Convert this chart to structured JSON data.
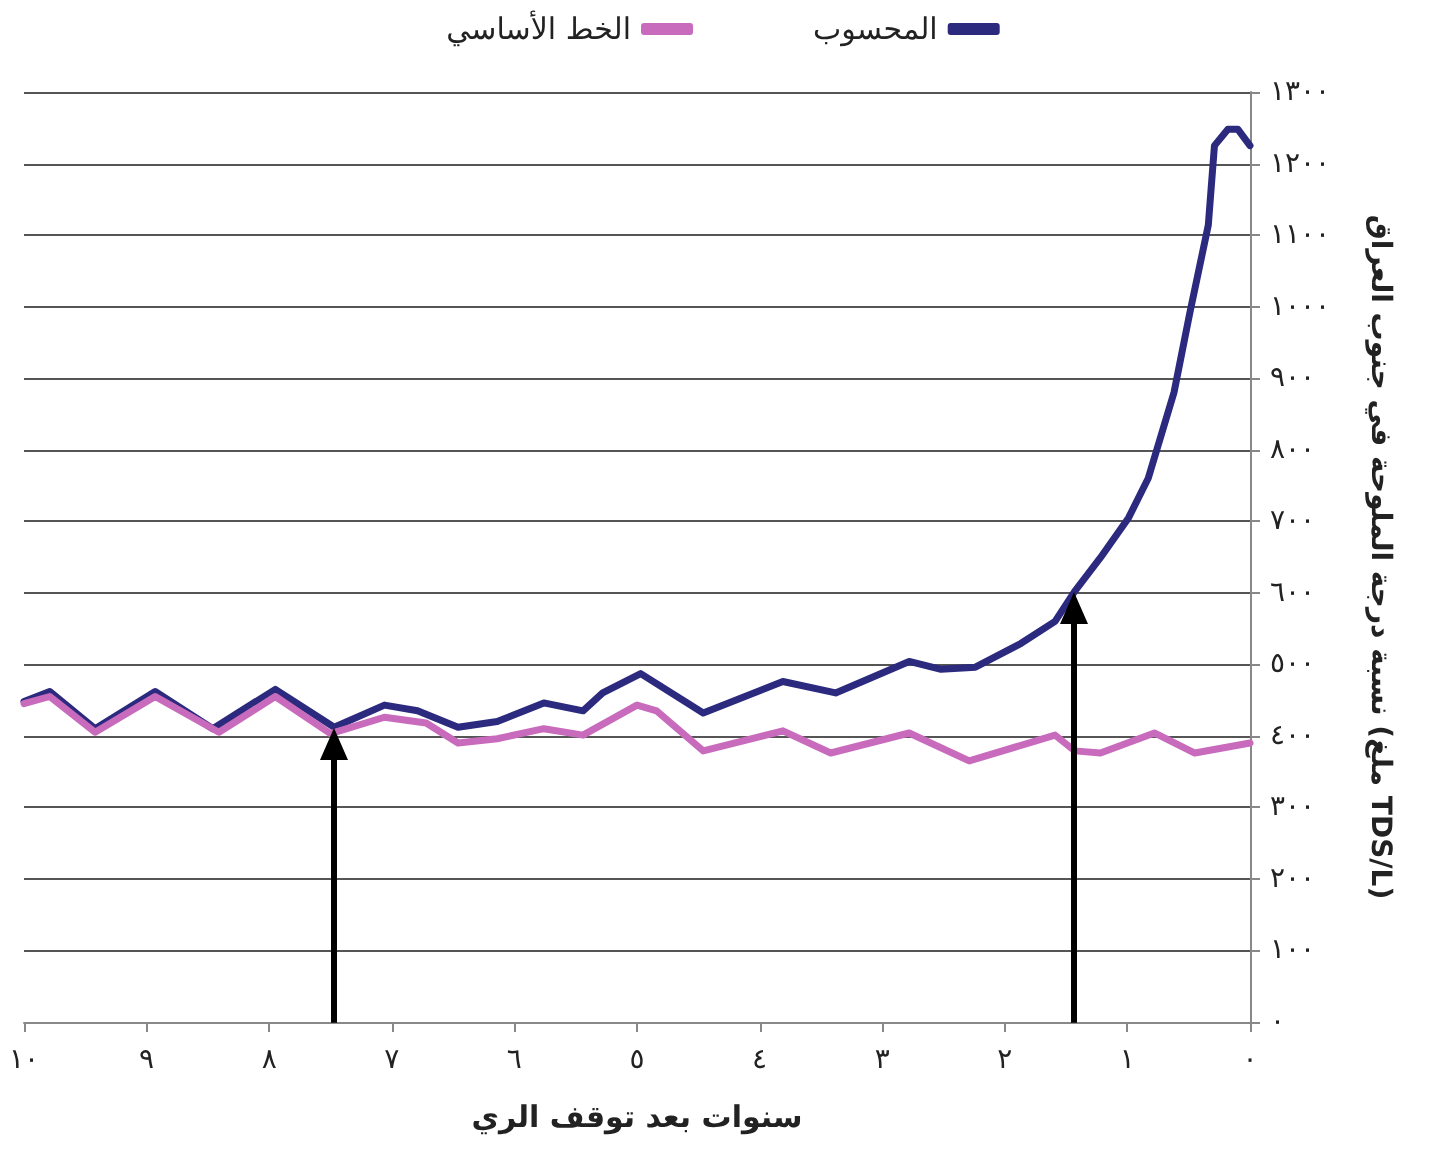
{
  "chart_data": {
    "type": "line",
    "xlabel": "سنوات بعد توقف الري",
    "ylabel": "نسبة درجة الملوحة في جنوب العراق (ملغ TDS/L)",
    "xlim": [
      10,
      0
    ],
    "ylim": [
      0,
      1300
    ],
    "xticks": [
      {
        "value": 10,
        "label": "١٠"
      },
      {
        "value": 9,
        "label": "٩"
      },
      {
        "value": 8,
        "label": "٨"
      },
      {
        "value": 7,
        "label": "٧"
      },
      {
        "value": 6,
        "label": "٦"
      },
      {
        "value": 5,
        "label": "٥"
      },
      {
        "value": 4,
        "label": "٤"
      },
      {
        "value": 3,
        "label": "٣"
      },
      {
        "value": 2,
        "label": "٢"
      },
      {
        "value": 1,
        "label": "١"
      },
      {
        "value": 0,
        "label": "٠"
      }
    ],
    "yticks": [
      {
        "value": 0,
        "label": "٠"
      },
      {
        "value": 100,
        "label": "١٠٠"
      },
      {
        "value": 200,
        "label": "٢٠٠"
      },
      {
        "value": 300,
        "label": "٣٠٠"
      },
      {
        "value": 400,
        "label": "٤٠٠"
      },
      {
        "value": 500,
        "label": "٥٠٠"
      },
      {
        "value": 600,
        "label": "٦٠٠"
      },
      {
        "value": 700,
        "label": "٧٠٠"
      },
      {
        "value": 800,
        "label": "٨٠٠"
      },
      {
        "value": 900,
        "label": "٩٠٠"
      },
      {
        "value": 1000,
        "label": "١٠٠٠"
      },
      {
        "value": 1100,
        "label": "١١٠٠"
      },
      {
        "value": 1200,
        "label": "١٢٠٠"
      },
      {
        "value": 1300,
        "label": "١٣٠٠"
      }
    ],
    "grid": "y",
    "legend": "top",
    "marker": "none",
    "line_style": "solid",
    "series": [
      {
        "name": "المحسوب",
        "color": "#2b2a7e",
        "x": [
          10,
          9.79,
          9.42,
          8.93,
          8.46,
          7.95,
          7.47,
          7.06,
          6.79,
          6.46,
          6.14,
          5.76,
          5.44,
          5.28,
          4.97,
          4.46,
          3.81,
          3.38,
          2.78,
          2.52,
          2.24,
          1.87,
          1.59,
          1.43,
          1.22,
          0.99,
          0.83,
          0.62,
          0.49,
          0.34,
          0.29,
          0.18,
          0.1,
          0
        ],
        "values": [
          448,
          462,
          410,
          462,
          410,
          465,
          412,
          443,
          435,
          412,
          420,
          446,
          435,
          460,
          487,
          432,
          476,
          460,
          504,
          493,
          496,
          529,
          560,
          602,
          649,
          705,
          760,
          880,
          992,
          1114,
          1225,
          1248,
          1248,
          1225
        ]
      },
      {
        "name": "الخط الأساسي",
        "color": "#c86bbd",
        "x": [
          10,
          9.79,
          9.42,
          8.93,
          8.41,
          7.95,
          7.5,
          7.06,
          6.72,
          6.46,
          6.14,
          5.76,
          5.44,
          5,
          4.84,
          4.46,
          3.81,
          3.42,
          2.78,
          2.29,
          1.59,
          1.43,
          1.22,
          0.78,
          0.45,
          0
        ],
        "values": [
          445,
          455,
          405,
          455,
          405,
          455,
          403,
          426,
          418,
          390,
          396,
          410,
          401,
          443,
          435,
          379,
          407,
          376,
          404,
          365,
          401,
          379,
          376,
          404,
          376,
          390
        ]
      }
    ]
  }
}
